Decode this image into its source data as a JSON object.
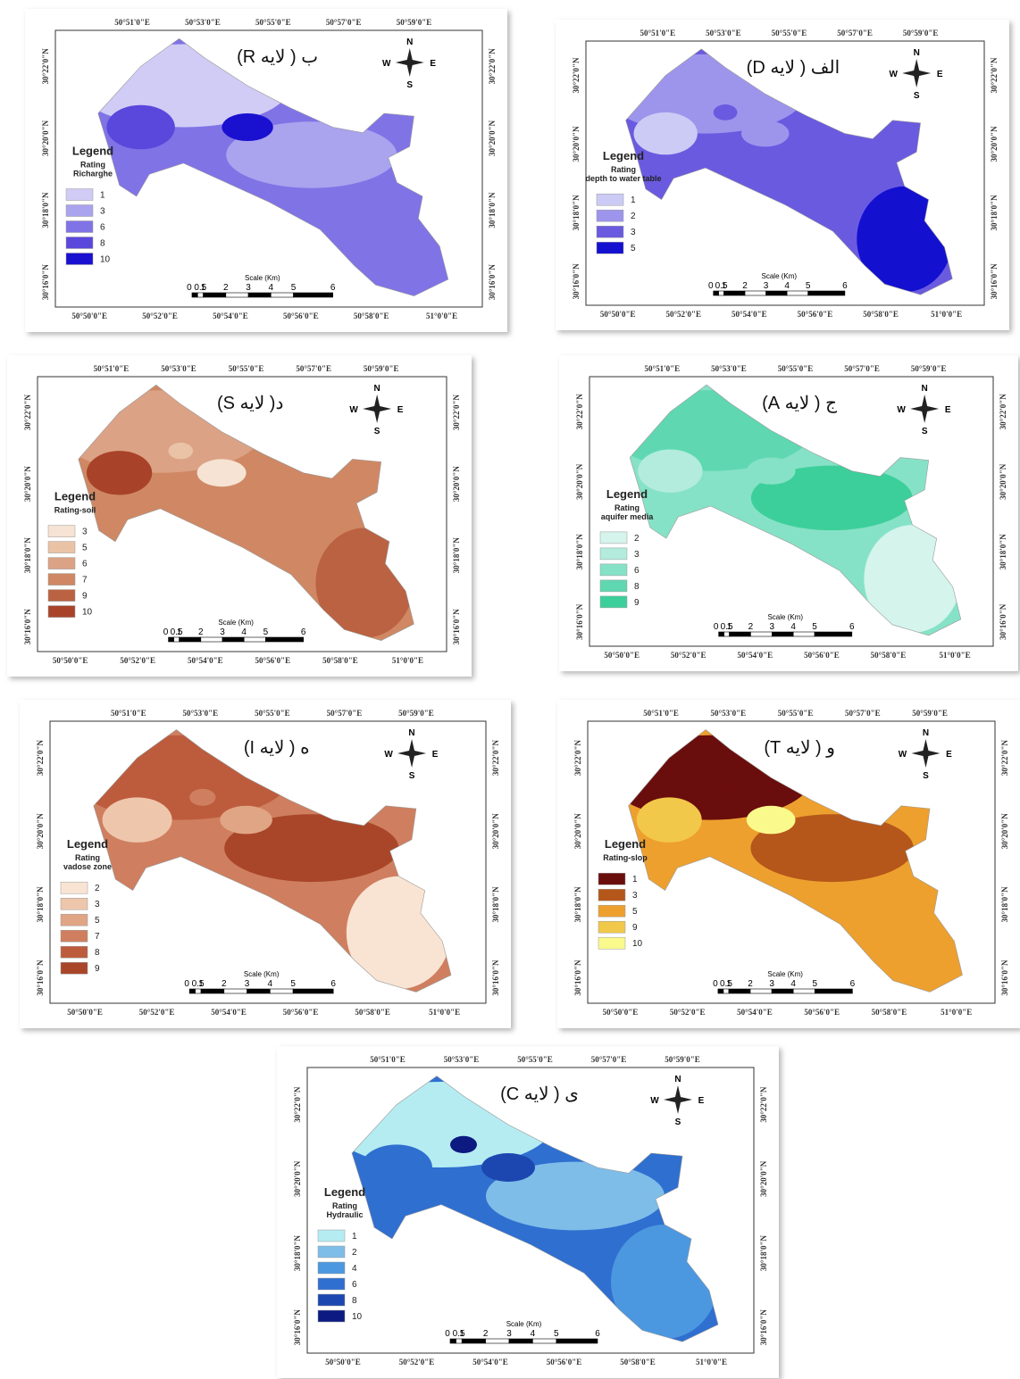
{
  "grid_labels": {
    "lon_top": [
      "50°51'0\"E",
      "50°53'0\"E",
      "50°55'0\"E",
      "50°57'0\"E",
      "50°59'0\"E"
    ],
    "lon_bottom": [
      "50°50'0\"E",
      "50°52'0\"E",
      "50°54'0\"E",
      "50°56'0\"E",
      "50°58'0\"E",
      "51°0'0\"E"
    ],
    "lat": [
      "30°22'0\"N",
      "30°20'0\"N",
      "30°18'0\"N",
      "30°16'0\"N"
    ]
  },
  "compass": {
    "n": "N",
    "s": "S",
    "w": "W",
    "e": "E"
  },
  "scale": {
    "title": "Scale (Km)",
    "labels": [
      "0",
      "0.5",
      "1",
      "2",
      "3",
      "4",
      "5",
      "6"
    ]
  },
  "panels": [
    {
      "title": "ب ( لایه R)",
      "legend": {
        "title": "Legend",
        "subtitle": [
          "Rating",
          "Richarghe"
        ],
        "items": [
          {
            "label": "1",
            "color": "#d0ccf5"
          },
          {
            "label": "3",
            "color": "#aaa3ee"
          },
          {
            "label": "6",
            "color": "#8073e6"
          },
          {
            "label": "8",
            "color": "#5a47dc"
          },
          {
            "label": "10",
            "color": "#1a10d0"
          }
        ]
      }
    },
    {
      "title": "الف ( لایه D)",
      "legend": {
        "title": "Legend",
        "subtitle": [
          "Rating",
          "depth to water table"
        ],
        "items": [
          {
            "label": "1",
            "color": "#cccbf5"
          },
          {
            "label": "2",
            "color": "#9d95ec"
          },
          {
            "label": "3",
            "color": "#6a5ae0"
          },
          {
            "label": "5",
            "color": "#1410d0"
          }
        ]
      }
    },
    {
      "title": "د( لایه S)",
      "legend": {
        "title": "Legend",
        "subtitle": [
          "Rating-soil"
        ],
        "items": [
          {
            "label": "3",
            "color": "#f6e3d3"
          },
          {
            "label": "5",
            "color": "#eac3a6"
          },
          {
            "label": "6",
            "color": "#dca285"
          },
          {
            "label": "7",
            "color": "#cf8863"
          },
          {
            "label": "9",
            "color": "#bb6242"
          },
          {
            "label": "10",
            "color": "#a8432a"
          }
        ]
      }
    },
    {
      "title": "ج ( لایه A)",
      "legend": {
        "title": "Legend",
        "subtitle": [
          "Rating",
          "aquifer media"
        ],
        "items": [
          {
            "label": "2",
            "color": "#d4f4ec"
          },
          {
            "label": "3",
            "color": "#b3ecdc"
          },
          {
            "label": "6",
            "color": "#86e2c6"
          },
          {
            "label": "8",
            "color": "#5fd8b1"
          },
          {
            "label": "9",
            "color": "#3dcf9b"
          }
        ]
      }
    },
    {
      "title": "ه ( لایه I)",
      "legend": {
        "title": "Legend",
        "subtitle": [
          "Rating",
          "vadose zone"
        ],
        "items": [
          {
            "label": "2",
            "color": "#f9e4d4"
          },
          {
            "label": "3",
            "color": "#eec6ac"
          },
          {
            "label": "5",
            "color": "#e0a585"
          },
          {
            "label": "7",
            "color": "#cf7f5f"
          },
          {
            "label": "8",
            "color": "#bd5c3d"
          },
          {
            "label": "9",
            "color": "#a9462a"
          }
        ]
      }
    },
    {
      "title": "و ( لایه T)",
      "legend": {
        "title": "Legend",
        "subtitle": [
          "Rating-slop"
        ],
        "items": [
          {
            "label": "1",
            "color": "#6a0d0d"
          },
          {
            "label": "3",
            "color": "#b5561a"
          },
          {
            "label": "5",
            "color": "#eda02e"
          },
          {
            "label": "9",
            "color": "#f2c84a"
          },
          {
            "label": "10",
            "color": "#fafa8c"
          }
        ]
      }
    },
    {
      "title": "ی ( لایه C)",
      "legend": {
        "title": "Legend",
        "subtitle": [
          "Rating",
          "Hydraulic"
        ],
        "items": [
          {
            "label": "1",
            "color": "#b5ecf2"
          },
          {
            "label": "2",
            "color": "#7ebde8"
          },
          {
            "label": "4",
            "color": "#4b98e0"
          },
          {
            "label": "6",
            "color": "#2f6fd0"
          },
          {
            "label": "8",
            "color": "#1d47b0"
          },
          {
            "label": "10",
            "color": "#0c1a82"
          }
        ]
      }
    }
  ]
}
